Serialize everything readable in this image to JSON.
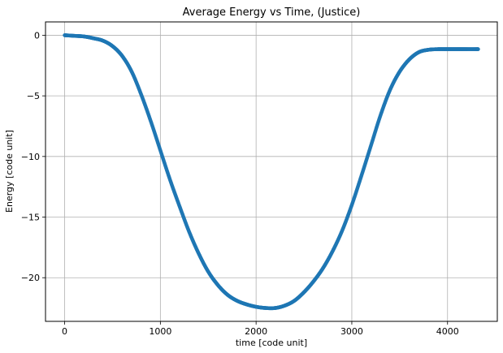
{
  "chart_data": {
    "type": "scatter",
    "title": "Average Energy vs Time, (Justice)",
    "xlabel": "time [code unit]",
    "ylabel": "Energy [code unit]",
    "xlim": [
      -200,
      4520
    ],
    "ylim": [
      -23.6,
      1.1
    ],
    "xticks": [
      0,
      1000,
      2000,
      3000,
      4000
    ],
    "xtick_labels": [
      "0",
      "1000",
      "2000",
      "3000",
      "4000"
    ],
    "yticks": [
      0,
      -5,
      -10,
      -15,
      -20
    ],
    "ytick_labels": [
      "0",
      "−5",
      "−10",
      "−15",
      "−20"
    ],
    "grid": true,
    "marker_color": "#1f77b4",
    "series": [
      {
        "name": "Average Energy",
        "x": [
          0,
          100,
          200,
          300,
          400,
          500,
          600,
          700,
          800,
          900,
          1000,
          1100,
          1200,
          1300,
          1400,
          1500,
          1600,
          1700,
          1800,
          1900,
          2000,
          2100,
          2200,
          2300,
          2400,
          2500,
          2600,
          2700,
          2800,
          2900,
          3000,
          3100,
          3200,
          3300,
          3400,
          3500,
          3600,
          3700,
          3800,
          3900,
          4000,
          4100,
          4200,
          4320
        ],
        "y": [
          0.0,
          -0.05,
          -0.1,
          -0.25,
          -0.45,
          -0.9,
          -1.7,
          -3.0,
          -4.9,
          -7.1,
          -9.5,
          -11.9,
          -14.1,
          -16.2,
          -18.0,
          -19.5,
          -20.6,
          -21.4,
          -21.9,
          -22.2,
          -22.4,
          -22.5,
          -22.5,
          -22.3,
          -21.9,
          -21.2,
          -20.3,
          -19.2,
          -17.8,
          -16.1,
          -14.0,
          -11.6,
          -9.1,
          -6.6,
          -4.5,
          -3.0,
          -2.0,
          -1.4,
          -1.2,
          -1.15,
          -1.15,
          -1.15,
          -1.15,
          -1.15
        ]
      }
    ]
  }
}
